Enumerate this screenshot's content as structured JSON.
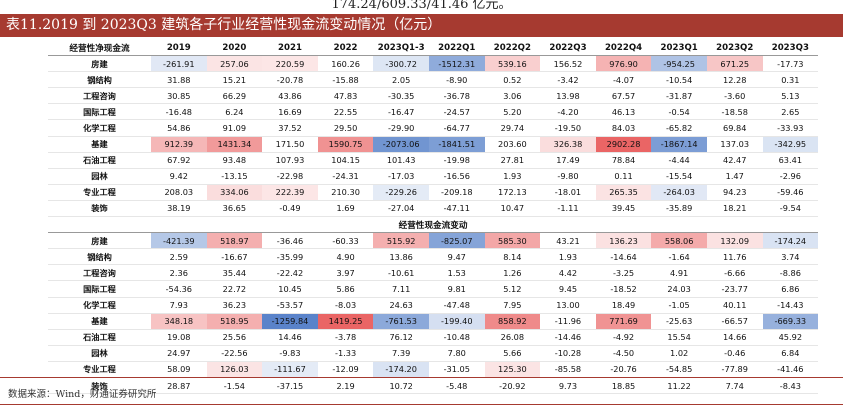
{
  "header": {
    "top_fragment": "174.24/609.33/41.46 亿元。",
    "title": "表11.2019 到 2023Q3 建筑各子行业经营性现金流变动情况（亿元）"
  },
  "table": {
    "columns": [
      "经营性净现金流",
      "2019",
      "2020",
      "2021",
      "2022",
      "2023Q1-3",
      "2022Q1",
      "2022Q2",
      "2022Q3",
      "2022Q4",
      "2023Q1",
      "2023Q2",
      "2023Q3"
    ],
    "sections": [
      {
        "rows": [
          {
            "label": "房建",
            "values": [
              "-261.91",
              "257.06",
              "220.59",
              "160.26",
              "-300.72",
              "-1512.31",
              "539.16",
              "156.52",
              "976.90",
              "-954.25",
              "671.25",
              "-17.73"
            ]
          },
          {
            "label": "钢结构",
            "values": [
              "31.88",
              "15.21",
              "-20.78",
              "-15.88",
              "2.05",
              "-8.90",
              "0.52",
              "-3.42",
              "-4.07",
              "-10.54",
              "12.28",
              "0.31"
            ]
          },
          {
            "label": "工程咨询",
            "values": [
              "30.85",
              "66.29",
              "43.86",
              "47.83",
              "-30.35",
              "-36.78",
              "3.06",
              "13.98",
              "67.57",
              "-31.87",
              "-3.60",
              "5.13"
            ]
          },
          {
            "label": "国际工程",
            "values": [
              "-16.48",
              "6.24",
              "16.69",
              "22.55",
              "-16.47",
              "-24.57",
              "5.20",
              "-4.20",
              "46.13",
              "-0.54",
              "-18.58",
              "2.65"
            ]
          },
          {
            "label": "化学工程",
            "values": [
              "54.86",
              "91.09",
              "37.52",
              "29.50",
              "-29.90",
              "-64.77",
              "29.74",
              "-19.50",
              "84.03",
              "-65.82",
              "69.84",
              "-33.93"
            ]
          },
          {
            "label": "基建",
            "values": [
              "912.39",
              "1431.34",
              "171.50",
              "1590.75",
              "-2073.06",
              "-1841.51",
              "203.60",
              "326.38",
              "2902.28",
              "-1867.14",
              "137.03",
              "-342.95"
            ]
          },
          {
            "label": "石油工程",
            "values": [
              "67.92",
              "93.48",
              "107.93",
              "104.15",
              "101.43",
              "-19.98",
              "27.81",
              "17.49",
              "78.84",
              "-4.44",
              "42.47",
              "63.41"
            ]
          },
          {
            "label": "园林",
            "values": [
              "9.42",
              "-13.15",
              "-22.98",
              "-24.31",
              "-17.03",
              "-16.56",
              "1.93",
              "-9.80",
              "0.11",
              "-15.54",
              "1.47",
              "-2.96"
            ]
          },
          {
            "label": "专业工程",
            "values": [
              "208.03",
              "334.06",
              "222.39",
              "210.30",
              "-229.26",
              "-209.18",
              "172.13",
              "-18.01",
              "265.35",
              "-264.03",
              "94.23",
              "-59.46"
            ]
          },
          {
            "label": "装饰",
            "values": [
              "38.19",
              "36.65",
              "-0.49",
              "1.69",
              "-27.04",
              "-47.11",
              "10.47",
              "-1.11",
              "39.45",
              "-35.89",
              "18.21",
              "-9.54"
            ]
          }
        ]
      },
      {
        "title": "经营性现金流变动",
        "rows": [
          {
            "label": "房建",
            "values": [
              "-421.39",
              "518.97",
              "-36.46",
              "-60.33",
              "515.92",
              "-825.07",
              "585.30",
              "43.21",
              "136.23",
              "558.06",
              "132.09",
              "-174.24"
            ]
          },
          {
            "label": "钢结构",
            "values": [
              "2.59",
              "-16.67",
              "-35.99",
              "4.90",
              "13.86",
              "9.47",
              "8.14",
              "1.93",
              "-14.64",
              "-1.64",
              "11.76",
              "3.74"
            ]
          },
          {
            "label": "工程咨询",
            "values": [
              "2.36",
              "35.44",
              "-22.42",
              "3.97",
              "-10.61",
              "1.53",
              "1.26",
              "4.42",
              "-3.25",
              "4.91",
              "-6.66",
              "-8.86"
            ]
          },
          {
            "label": "国际工程",
            "values": [
              "-54.36",
              "22.72",
              "10.45",
              "5.86",
              "7.11",
              "9.81",
              "5.12",
              "9.45",
              "-18.52",
              "24.03",
              "-23.77",
              "6.86"
            ]
          },
          {
            "label": "化学工程",
            "values": [
              "7.93",
              "36.23",
              "-53.57",
              "-8.03",
              "24.63",
              "-47.48",
              "7.95",
              "13.00",
              "18.49",
              "-1.05",
              "40.11",
              "-14.43"
            ]
          },
          {
            "label": "基建",
            "values": [
              "348.18",
              "518.95",
              "-1259.84",
              "1419.25",
              "-761.53",
              "-199.40",
              "858.92",
              "-11.96",
              "771.69",
              "-25.63",
              "-66.57",
              "-669.33"
            ]
          },
          {
            "label": "石油工程",
            "values": [
              "19.08",
              "25.56",
              "14.46",
              "-3.78",
              "76.12",
              "-10.48",
              "26.08",
              "-14.46",
              "-4.92",
              "15.54",
              "14.66",
              "45.92"
            ]
          },
          {
            "label": "园林",
            "values": [
              "24.97",
              "-22.56",
              "-9.83",
              "-1.33",
              "7.39",
              "7.80",
              "5.66",
              "-10.28",
              "-4.50",
              "1.02",
              "-0.46",
              "6.84"
            ]
          },
          {
            "label": "专业工程",
            "values": [
              "58.09",
              "126.03",
              "-111.67",
              "-12.09",
              "-174.20",
              "-31.05",
              "125.30",
              "-85.58",
              "-20.76",
              "-54.85",
              "-77.89",
              "-41.46"
            ]
          },
          {
            "label": "装饰",
            "values": [
              "28.87",
              "-1.54",
              "-37.15",
              "2.19",
              "10.72",
              "-5.48",
              "-20.92",
              "9.73",
              "18.85",
              "11.22",
              "7.74",
              "-8.43"
            ]
          }
        ]
      }
    ]
  },
  "footer": {
    "source": "数据来源：Wind，财通证券研究所"
  }
}
